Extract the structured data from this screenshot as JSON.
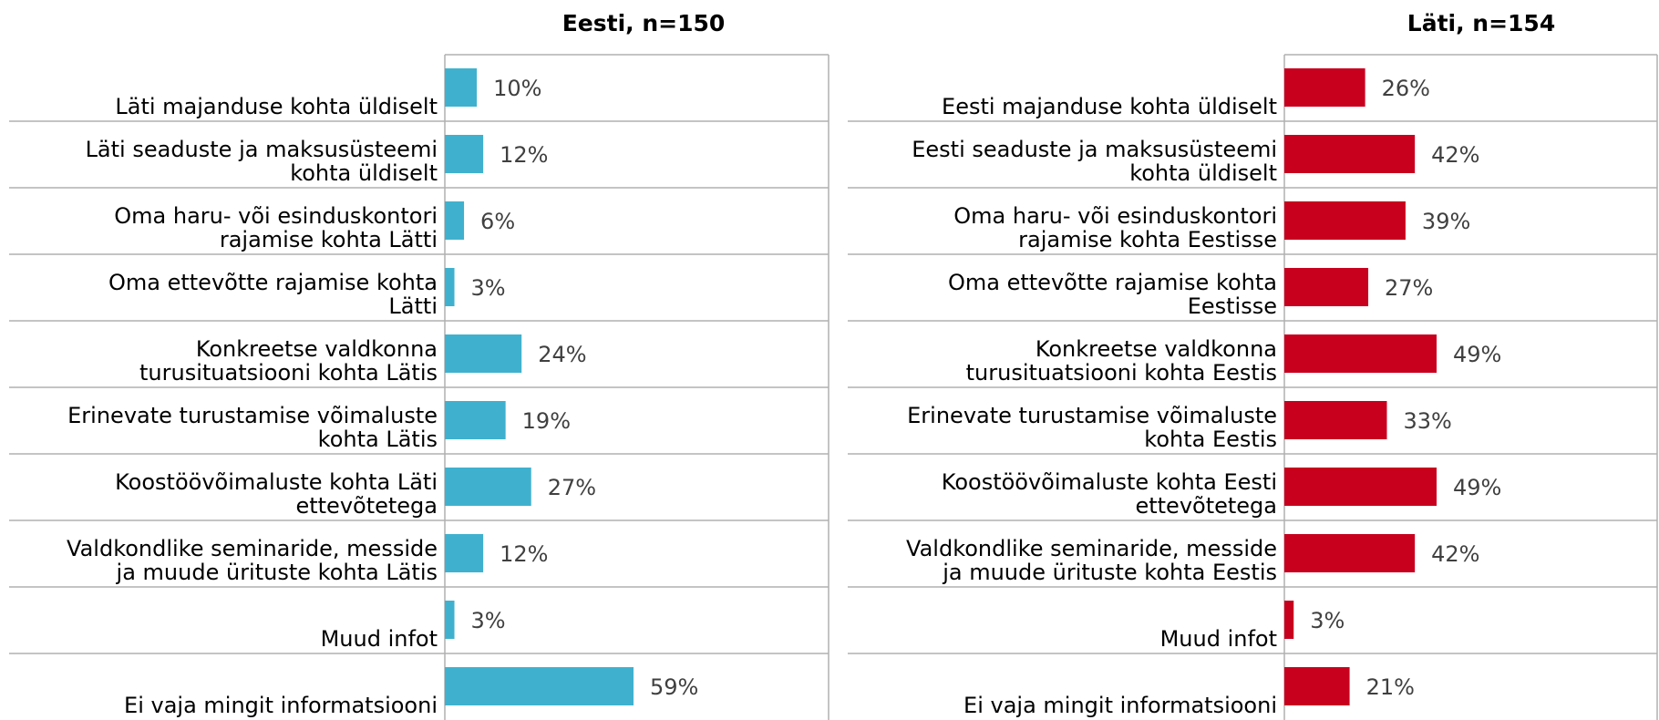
{
  "chart_data": [
    {
      "type": "bar",
      "orientation": "horizontal",
      "title": "Eesti, n=150",
      "color": "#3fb1ce",
      "xlim": [
        0,
        120
      ],
      "categories": [
        [
          "Läti majanduse kohta üldiselt"
        ],
        [
          "Läti seaduste ja maksusüsteemi",
          "kohta üldiselt"
        ],
        [
          "Oma haru- või esinduskontori",
          "rajamise kohta Lätti"
        ],
        [
          "Oma ettevõtte rajamise kohta",
          "Lätti"
        ],
        [
          "Konkreetse valdkonna",
          "turusituatsiooni kohta Lätis"
        ],
        [
          "Erinevate turustamise võimaluste",
          "kohta Lätis"
        ],
        [
          "Koostöövõimaluste kohta Läti",
          "ettevõtetega"
        ],
        [
          "Valdkondlike seminaride, messide",
          "ja muude ürituste kohta Lätis"
        ],
        [
          "Muud infot"
        ],
        [
          "Ei vaja mingit informatsiooni"
        ]
      ],
      "values": [
        10,
        12,
        6,
        3,
        24,
        19,
        27,
        12,
        3,
        59
      ],
      "value_labels": [
        "10%",
        "12%",
        "6%",
        "3%",
        "24%",
        "19%",
        "27%",
        "12%",
        "3%",
        "59%"
      ]
    },
    {
      "type": "bar",
      "orientation": "horizontal",
      "title": "Läti, n=154",
      "color": "#c8001e",
      "xlim": [
        0,
        120
      ],
      "categories": [
        [
          "Eesti majanduse kohta üldiselt"
        ],
        [
          "Eesti seaduste ja maksusüsteemi",
          "kohta üldiselt"
        ],
        [
          "Oma haru- või esinduskontori",
          "rajamise kohta Eestisse"
        ],
        [
          "Oma ettevõtte rajamise kohta",
          "Eestisse"
        ],
        [
          "Konkreetse valdkonna",
          "turusituatsiooni kohta Eestis"
        ],
        [
          "Erinevate turustamise võimaluste",
          "kohta Eestis"
        ],
        [
          "Koostöövõimaluste kohta Eesti",
          "ettevõtetega"
        ],
        [
          "Valdkondlike seminaride, messide",
          "ja muude ürituste kohta Eestis"
        ],
        [
          "Muud infot"
        ],
        [
          "Ei vaja mingit informatsiooni"
        ]
      ],
      "values": [
        26,
        42,
        39,
        27,
        49,
        33,
        49,
        42,
        3,
        21
      ],
      "value_labels": [
        "26%",
        "42%",
        "39%",
        "27%",
        "49%",
        "33%",
        "49%",
        "42%",
        "3%",
        "21%"
      ]
    }
  ]
}
